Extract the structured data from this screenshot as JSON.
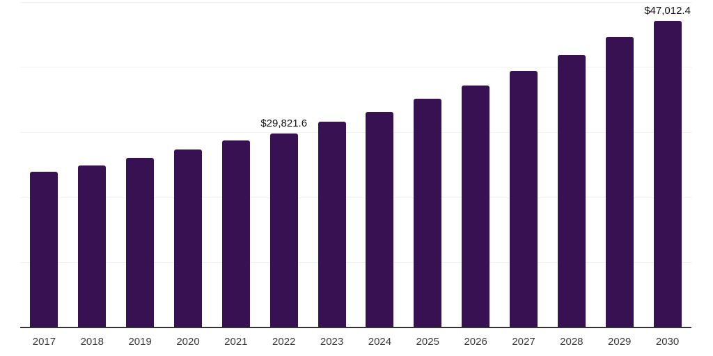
{
  "chart_data": {
    "type": "bar",
    "title": "",
    "xlabel": "",
    "ylabel": "",
    "categories": [
      "2017",
      "2018",
      "2019",
      "2020",
      "2021",
      "2022",
      "2023",
      "2024",
      "2025",
      "2026",
      "2027",
      "2028",
      "2029",
      "2030"
    ],
    "values": [
      23870,
      24900,
      26070,
      27320,
      28740,
      29821.6,
      31590,
      33120,
      35080,
      37170,
      39410,
      41800,
      44580,
      47012.4
    ],
    "data_labels": {
      "2022": "$29,821.6",
      "2030": "$47,012.4"
    },
    "ylim": [
      0,
      50000
    ],
    "gridline_step": 10000,
    "grid": true,
    "legend": "none",
    "colors": {
      "bar": "#371151",
      "gridline": "#f2f2f2",
      "axis_line": "#333333",
      "tick_label": "#3b3b3b",
      "data_label": "#141414",
      "background": "#ffffff"
    }
  }
}
